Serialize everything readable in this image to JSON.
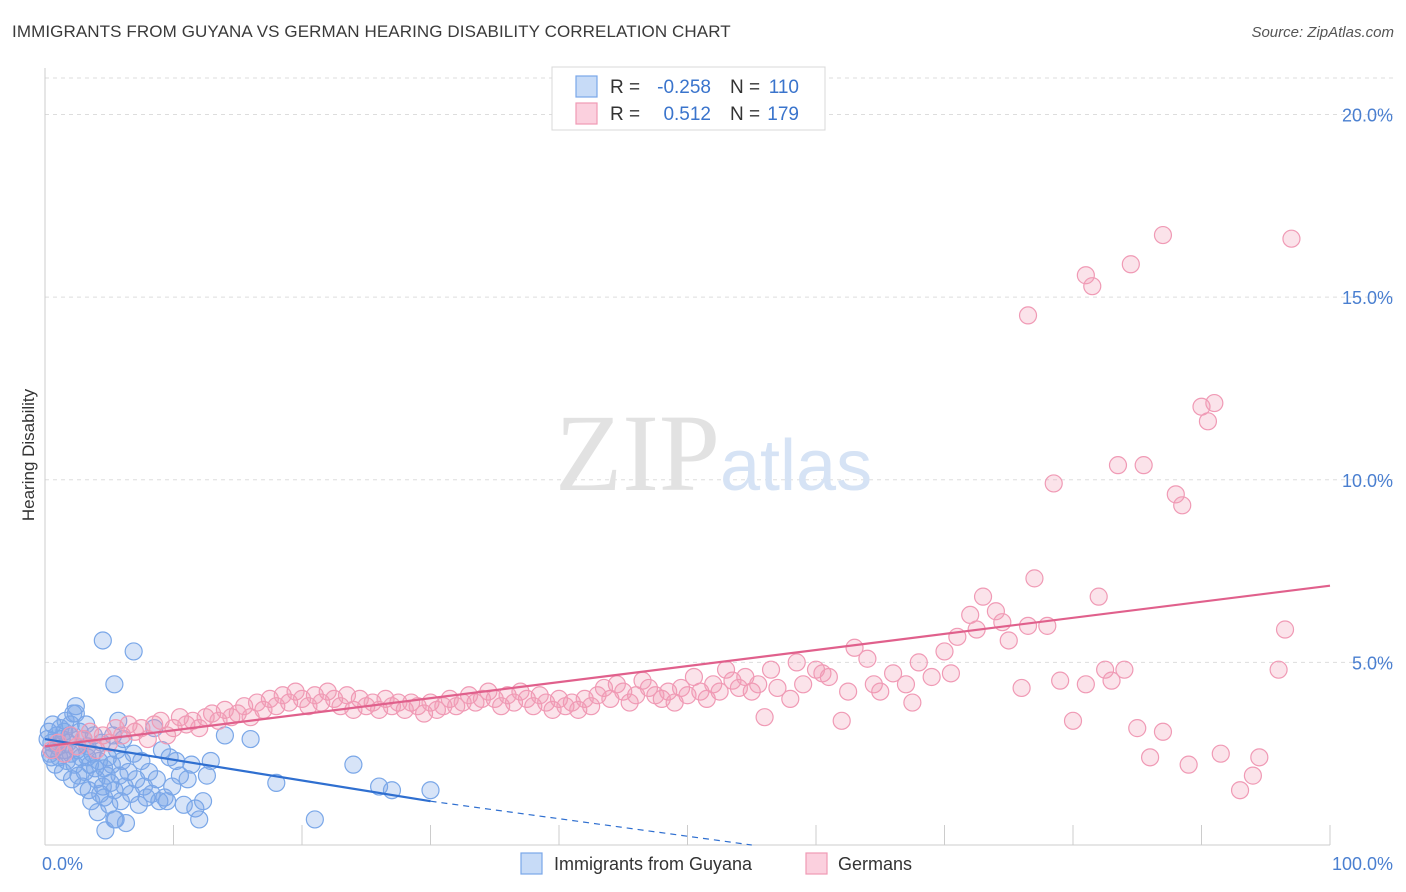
{
  "header": {
    "title": "IMMIGRANTS FROM GUYANA VS GERMAN HEARING DISABILITY CORRELATION CHART",
    "source": "Source: ZipAtlas.com"
  },
  "watermark": {
    "zip": "ZIP",
    "atlas": "atlas"
  },
  "legend": {
    "rows": [
      {
        "r_label": "R =",
        "r_value": "-0.258",
        "n_label": "N =",
        "n_value": "110",
        "color": "#7aa7e8"
      },
      {
        "r_label": "R =",
        "r_value": "0.512",
        "n_label": "N =",
        "n_value": "179",
        "color": "#f09ab5"
      }
    ]
  },
  "bottom_legend": {
    "items": [
      {
        "label": "Immigrants from Guyana",
        "color": "#7aa7e8"
      },
      {
        "label": "Germans",
        "color": "#f09ab5"
      }
    ]
  },
  "chart_data": {
    "type": "scatter",
    "title": "IMMIGRANTS FROM GUYANA VS GERMAN HEARING DISABILITY CORRELATION CHART",
    "xlabel": "",
    "ylabel": "Hearing Disability",
    "xlim": [
      0,
      100
    ],
    "ylim": [
      0,
      21
    ],
    "x_tick_labels": [
      "0.0%",
      "100.0%"
    ],
    "y_ticks": [
      5,
      10,
      15,
      20
    ],
    "y_tick_labels": [
      "5.0%",
      "10.0%",
      "15.0%",
      "20.0%"
    ],
    "grid": true,
    "legend_position": "top-center",
    "series": [
      {
        "name": "Immigrants from Guyana",
        "color": "#7aa7e8",
        "line_color": "#2f6fd0",
        "trend": {
          "x": [
            0,
            30
          ],
          "y": [
            2.9,
            1.2
          ],
          "dashed_to": [
            55,
            0.0
          ]
        },
        "points": [
          [
            0.2,
            2.9
          ],
          [
            0.3,
            3.1
          ],
          [
            0.4,
            2.5
          ],
          [
            0.5,
            2.8
          ],
          [
            0.6,
            3.3
          ],
          [
            0.7,
            2.6
          ],
          [
            0.8,
            2.2
          ],
          [
            0.9,
            3.0
          ],
          [
            1.0,
            2.7
          ],
          [
            1.1,
            2.4
          ],
          [
            1.2,
            3.2
          ],
          [
            1.3,
            2.9
          ],
          [
            1.4,
            2.0
          ],
          [
            1.5,
            2.6
          ],
          [
            1.6,
            3.4
          ],
          [
            1.7,
            2.3
          ],
          [
            1.8,
            2.8
          ],
          [
            1.9,
            3.0
          ],
          [
            2.0,
            2.5
          ],
          [
            2.1,
            1.8
          ],
          [
            2.2,
            3.6
          ],
          [
            2.3,
            2.2
          ],
          [
            2.4,
            3.8
          ],
          [
            2.5,
            2.6
          ],
          [
            2.6,
            1.9
          ],
          [
            2.7,
            3.1
          ],
          [
            2.8,
            2.4
          ],
          [
            2.9,
            1.6
          ],
          [
            3.0,
            2.9
          ],
          [
            3.1,
            2.0
          ],
          [
            3.2,
            3.3
          ],
          [
            3.3,
            2.7
          ],
          [
            3.4,
            1.5
          ],
          [
            3.5,
            2.2
          ],
          [
            3.6,
            1.2
          ],
          [
            3.7,
            2.5
          ],
          [
            3.8,
            3.0
          ],
          [
            3.9,
            2.1
          ],
          [
            4.0,
            1.8
          ],
          [
            4.1,
            0.9
          ],
          [
            4.2,
            2.3
          ],
          [
            4.3,
            1.4
          ],
          [
            4.4,
            2.8
          ],
          [
            4.5,
            1.6
          ],
          [
            4.6,
            1.3
          ],
          [
            4.7,
            0.4
          ],
          [
            4.8,
            1.9
          ],
          [
            4.9,
            2.4
          ],
          [
            5.0,
            1.1
          ],
          [
            5.1,
            1.7
          ],
          [
            5.2,
            2.2
          ],
          [
            5.3,
            3.0
          ],
          [
            5.4,
            1.5
          ],
          [
            5.5,
            0.7
          ],
          [
            5.6,
            2.6
          ],
          [
            5.7,
            3.4
          ],
          [
            5.8,
            1.9
          ],
          [
            5.9,
            1.2
          ],
          [
            6.0,
            2.3
          ],
          [
            6.1,
            2.9
          ],
          [
            6.2,
            1.6
          ],
          [
            6.3,
            0.6
          ],
          [
            6.5,
            2.0
          ],
          [
            6.7,
            1.4
          ],
          [
            6.9,
            2.5
          ],
          [
            7.1,
            1.8
          ],
          [
            7.3,
            1.1
          ],
          [
            7.5,
            2.3
          ],
          [
            7.7,
            1.6
          ],
          [
            7.9,
            1.3
          ],
          [
            8.1,
            2.0
          ],
          [
            8.3,
            1.4
          ],
          [
            8.5,
            3.2
          ],
          [
            8.7,
            1.8
          ],
          [
            8.9,
            1.2
          ],
          [
            9.1,
            2.6
          ],
          [
            9.3,
            1.3
          ],
          [
            9.5,
            1.2
          ],
          [
            9.7,
            2.4
          ],
          [
            9.9,
            1.6
          ],
          [
            10.2,
            2.3
          ],
          [
            10.5,
            1.9
          ],
          [
            10.8,
            1.1
          ],
          [
            11.1,
            1.8
          ],
          [
            11.4,
            2.2
          ],
          [
            11.7,
            1.0
          ],
          [
            12.0,
            0.7
          ],
          [
            12.3,
            1.2
          ],
          [
            12.6,
            1.9
          ],
          [
            12.9,
            2.3
          ],
          [
            4.6,
            2.1
          ],
          [
            5.4,
            0.7
          ],
          [
            6.9,
            5.3
          ],
          [
            4.5,
            5.6
          ],
          [
            5.4,
            4.4
          ],
          [
            2.4,
            3.6
          ],
          [
            0.5,
            2.4
          ],
          [
            1.5,
            3.1
          ],
          [
            2.0,
            3.3
          ],
          [
            3.3,
            2.4
          ],
          [
            14.0,
            3.0
          ],
          [
            16.0,
            2.9
          ],
          [
            18.0,
            1.7
          ],
          [
            21.0,
            0.7
          ],
          [
            24.0,
            2.2
          ],
          [
            26.0,
            1.6
          ],
          [
            27.0,
            1.5
          ],
          [
            30.0,
            1.5
          ]
        ]
      },
      {
        "name": "Germans",
        "color": "#f09ab5",
        "line_color": "#e0608c",
        "trend": {
          "x": [
            0,
            100
          ],
          "y": [
            2.7,
            7.1
          ]
        },
        "points": [
          [
            0.5,
            2.6
          ],
          [
            1.0,
            2.8
          ],
          [
            1.5,
            2.5
          ],
          [
            2.0,
            3.0
          ],
          [
            2.5,
            2.7
          ],
          [
            3.0,
            2.9
          ],
          [
            3.5,
            3.1
          ],
          [
            4.0,
            2.6
          ],
          [
            4.5,
            3.0
          ],
          [
            5.0,
            2.8
          ],
          [
            5.5,
            3.2
          ],
          [
            6.0,
            3.0
          ],
          [
            6.5,
            3.3
          ],
          [
            7.0,
            3.1
          ],
          [
            7.5,
            3.2
          ],
          [
            8.0,
            2.9
          ],
          [
            8.5,
            3.3
          ],
          [
            9.0,
            3.4
          ],
          [
            9.5,
            3.0
          ],
          [
            10.0,
            3.2
          ],
          [
            10.5,
            3.5
          ],
          [
            11.0,
            3.3
          ],
          [
            11.5,
            3.4
          ],
          [
            12.0,
            3.2
          ],
          [
            12.5,
            3.5
          ],
          [
            13.0,
            3.6
          ],
          [
            13.5,
            3.4
          ],
          [
            14.0,
            3.7
          ],
          [
            14.5,
            3.5
          ],
          [
            15.0,
            3.6
          ],
          [
            15.5,
            3.8
          ],
          [
            16.0,
            3.5
          ],
          [
            16.5,
            3.9
          ],
          [
            17.0,
            3.7
          ],
          [
            17.5,
            4.0
          ],
          [
            18.0,
            3.8
          ],
          [
            18.5,
            4.1
          ],
          [
            19.0,
            3.9
          ],
          [
            19.5,
            4.2
          ],
          [
            20.0,
            4.0
          ],
          [
            20.5,
            3.8
          ],
          [
            21.0,
            4.1
          ],
          [
            21.5,
            3.9
          ],
          [
            22.0,
            4.2
          ],
          [
            22.5,
            4.0
          ],
          [
            23.0,
            3.8
          ],
          [
            23.5,
            4.1
          ],
          [
            24.0,
            3.7
          ],
          [
            24.5,
            4.0
          ],
          [
            25.0,
            3.8
          ],
          [
            25.5,
            3.9
          ],
          [
            26.0,
            3.7
          ],
          [
            26.5,
            4.0
          ],
          [
            27.0,
            3.8
          ],
          [
            27.5,
            3.9
          ],
          [
            28.0,
            3.7
          ],
          [
            28.5,
            3.9
          ],
          [
            29.0,
            3.8
          ],
          [
            29.5,
            3.6
          ],
          [
            30.0,
            3.9
          ],
          [
            30.5,
            3.7
          ],
          [
            31.0,
            3.8
          ],
          [
            31.5,
            4.0
          ],
          [
            32.0,
            3.8
          ],
          [
            32.5,
            3.9
          ],
          [
            33.0,
            4.1
          ],
          [
            33.5,
            3.9
          ],
          [
            34.0,
            4.0
          ],
          [
            34.5,
            4.2
          ],
          [
            35.0,
            4.0
          ],
          [
            35.5,
            3.8
          ],
          [
            36.0,
            4.1
          ],
          [
            36.5,
            3.9
          ],
          [
            37.0,
            4.2
          ],
          [
            37.5,
            4.0
          ],
          [
            38.0,
            3.8
          ],
          [
            38.5,
            4.1
          ],
          [
            39.0,
            3.9
          ],
          [
            39.5,
            3.7
          ],
          [
            40.0,
            4.0
          ],
          [
            40.5,
            3.8
          ],
          [
            41.0,
            3.9
          ],
          [
            41.5,
            3.7
          ],
          [
            42.0,
            4.0
          ],
          [
            42.5,
            3.8
          ],
          [
            43.0,
            4.1
          ],
          [
            43.5,
            4.3
          ],
          [
            44.0,
            4.0
          ],
          [
            44.5,
            4.4
          ],
          [
            45.0,
            4.2
          ],
          [
            45.5,
            3.9
          ],
          [
            46.0,
            4.1
          ],
          [
            46.5,
            4.5
          ],
          [
            47.0,
            4.3
          ],
          [
            47.5,
            4.1
          ],
          [
            48.0,
            4.0
          ],
          [
            48.5,
            4.2
          ],
          [
            49.0,
            3.9
          ],
          [
            49.5,
            4.3
          ],
          [
            50.0,
            4.1
          ],
          [
            50.5,
            4.6
          ],
          [
            51.0,
            4.2
          ],
          [
            51.5,
            4.0
          ],
          [
            52.0,
            4.4
          ],
          [
            52.5,
            4.2
          ],
          [
            53.0,
            4.8
          ],
          [
            53.5,
            4.5
          ],
          [
            54.0,
            4.3
          ],
          [
            54.5,
            4.6
          ],
          [
            55.0,
            4.2
          ],
          [
            55.5,
            4.4
          ],
          [
            56.0,
            3.5
          ],
          [
            56.5,
            4.8
          ],
          [
            57.0,
            4.3
          ],
          [
            58.0,
            4.0
          ],
          [
            58.5,
            5.0
          ],
          [
            59.0,
            4.4
          ],
          [
            60.0,
            4.8
          ],
          [
            60.5,
            4.7
          ],
          [
            61.0,
            4.6
          ],
          [
            62.0,
            3.4
          ],
          [
            62.5,
            4.2
          ],
          [
            63.0,
            5.4
          ],
          [
            64.0,
            5.1
          ],
          [
            64.5,
            4.4
          ],
          [
            65.0,
            4.2
          ],
          [
            66.0,
            4.7
          ],
          [
            67.0,
            4.4
          ],
          [
            67.5,
            3.9
          ],
          [
            68.0,
            5.0
          ],
          [
            69.0,
            4.6
          ],
          [
            70.0,
            5.3
          ],
          [
            70.5,
            4.7
          ],
          [
            71.0,
            5.7
          ],
          [
            72.0,
            6.3
          ],
          [
            72.5,
            5.9
          ],
          [
            73.0,
            6.8
          ],
          [
            74.0,
            6.4
          ],
          [
            74.5,
            6.1
          ],
          [
            75.0,
            5.6
          ],
          [
            76.0,
            4.3
          ],
          [
            76.5,
            6.0
          ],
          [
            77.0,
            7.3
          ],
          [
            78.0,
            6.0
          ],
          [
            79.0,
            4.5
          ],
          [
            80.0,
            3.4
          ],
          [
            81.0,
            4.4
          ],
          [
            82.0,
            6.8
          ],
          [
            82.5,
            4.8
          ],
          [
            83.0,
            4.5
          ],
          [
            84.0,
            4.8
          ],
          [
            85.0,
            3.2
          ],
          [
            86.0,
            2.4
          ],
          [
            87.0,
            3.1
          ],
          [
            88.0,
            9.6
          ],
          [
            88.5,
            9.3
          ],
          [
            90.0,
            12.0
          ],
          [
            90.5,
            11.6
          ],
          [
            91.0,
            12.1
          ],
          [
            81.0,
            15.6
          ],
          [
            81.5,
            15.3
          ],
          [
            83.5,
            10.4
          ],
          [
            85.5,
            10.4
          ],
          [
            78.5,
            9.9
          ],
          [
            84.5,
            15.9
          ],
          [
            87.0,
            16.7
          ],
          [
            97.0,
            16.6
          ],
          [
            89.0,
            2.2
          ],
          [
            91.5,
            2.5
          ],
          [
            93.0,
            1.5
          ],
          [
            94.0,
            1.9
          ],
          [
            94.5,
            2.4
          ],
          [
            96.0,
            4.8
          ],
          [
            96.5,
            5.9
          ],
          [
            76.5,
            14.5
          ]
        ]
      }
    ]
  }
}
